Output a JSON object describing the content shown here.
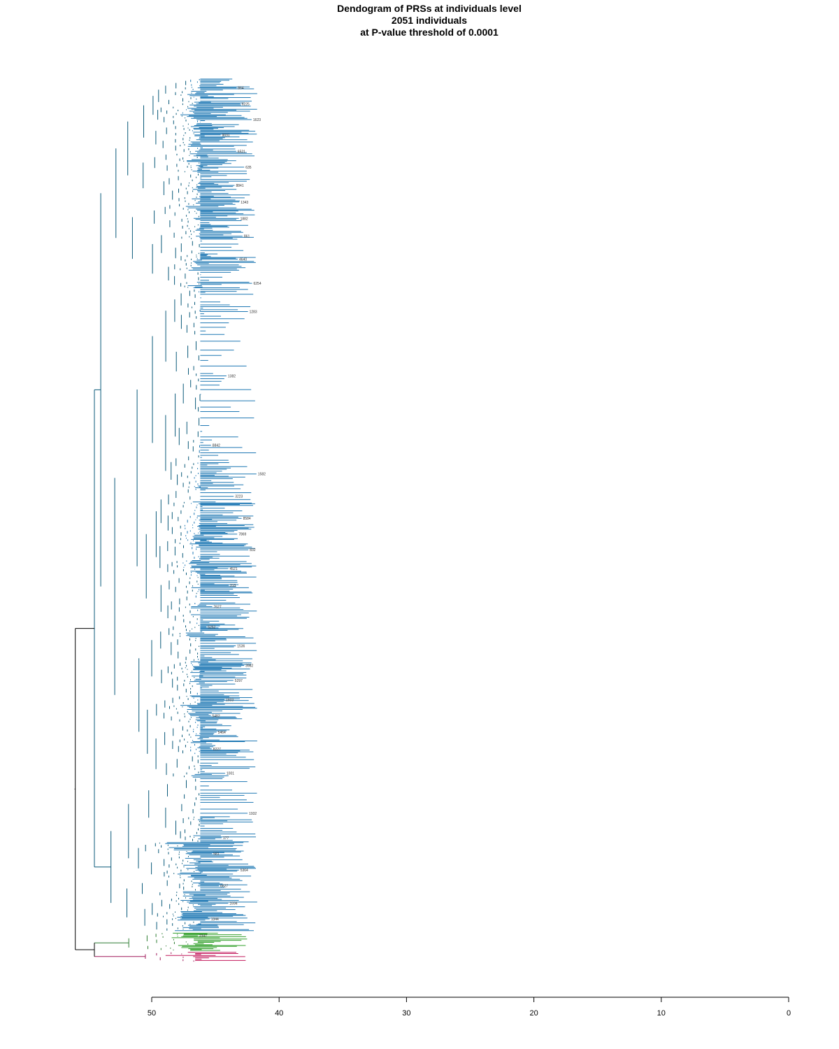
{
  "chart_data": {
    "type": "dendrogram",
    "title": "Dendogram of PRSs at individuals level",
    "subtitle_lines": [
      "2051 individuals",
      "at P-value threshold of 0.0001"
    ],
    "xlabel": "",
    "ylabel": "",
    "orientation": "horizontal",
    "x_axis": {
      "reversed": true,
      "range": [
        0,
        50
      ],
      "ticks": [
        50,
        40,
        30,
        20,
        10,
        0
      ],
      "tick_labels": [
        "50",
        "40",
        "30",
        "20",
        "10",
        "0"
      ]
    },
    "n_leaves": 2051,
    "root_height": 56,
    "clusters": [
      {
        "name": "",
        "color": "#1f78b4",
        "trunk": "#0a5a7a",
        "leaf_share": 0.965,
        "merge_height": 54.5
      },
      {
        "name": "",
        "color": "#33a02c",
        "trunk": "#2e7d32",
        "leaf_share": 0.022,
        "merge_height": 53.0
      },
      {
        "name": "",
        "color": "#c2185b",
        "trunk": "#a0185a",
        "leaf_share": 0.013,
        "merge_height": 53.0
      }
    ],
    "leaf_height_range": [
      42,
      47
    ],
    "sample_leaf_labels": [
      "864",
      "6225",
      "1623",
      "9031",
      "6521",
      "635",
      "8841",
      "1343",
      "1882",
      "861",
      "4640",
      "6254",
      "1283",
      "1382",
      "8842",
      "1582",
      "3223",
      "8584",
      "7869",
      "832",
      "4521",
      "213",
      "7627",
      "5252",
      "1536",
      "3982",
      "5297",
      "1933",
      "5482",
      "5464",
      "8227",
      "1001",
      "1932",
      "177",
      "581",
      "5364",
      "6627",
      "1694",
      "1344",
      "2347"
    ],
    "grid": false
  }
}
